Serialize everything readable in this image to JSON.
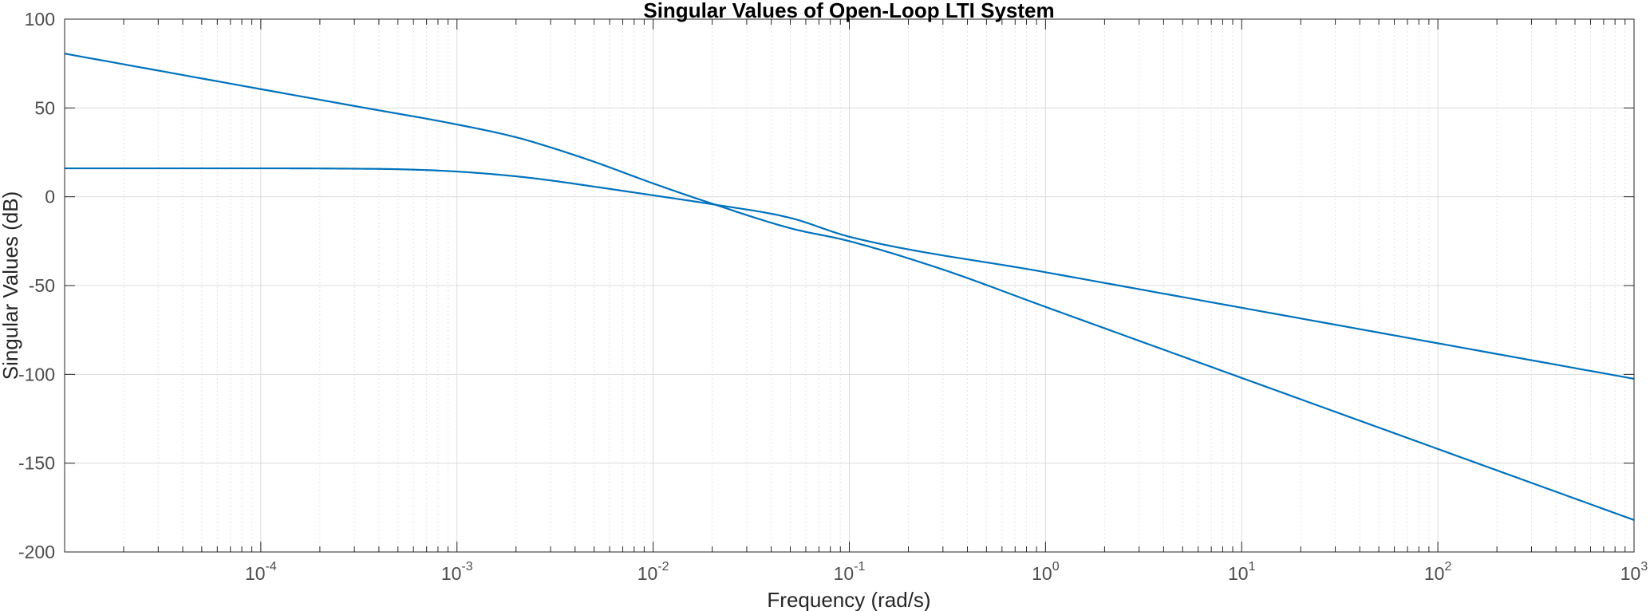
{
  "chart_data": {
    "type": "line",
    "title": "Singular Values of Open-Loop LTI System",
    "xlabel": "Frequency (rad/s)",
    "ylabel": "Singular Values (dB)",
    "xscale": "log",
    "xlim": [
      1e-05,
      1000
    ],
    "ylim": [
      -200,
      100
    ],
    "grid": "major and minor",
    "x_ticks": [
      {
        "base": "10",
        "exp": "-4",
        "value": 0.0001
      },
      {
        "base": "10",
        "exp": "-3",
        "value": 0.001
      },
      {
        "base": "10",
        "exp": "-2",
        "value": 0.01
      },
      {
        "base": "10",
        "exp": "-1",
        "value": 0.1
      },
      {
        "base": "10",
        "exp": "0",
        "value": 1
      },
      {
        "base": "10",
        "exp": "1",
        "value": 10
      },
      {
        "base": "10",
        "exp": "2",
        "value": 100
      },
      {
        "base": "10",
        "exp": "3",
        "value": 1000
      }
    ],
    "y_ticks": [
      {
        "label": "100",
        "value": 100
      },
      {
        "label": "50",
        "value": 50
      },
      {
        "label": "0",
        "value": 0
      },
      {
        "label": "-50",
        "value": -50
      },
      {
        "label": "-100",
        "value": -100
      },
      {
        "label": "-150",
        "value": -150
      },
      {
        "label": "-200",
        "value": -200
      }
    ],
    "line_color": "#0072bd",
    "series": [
      {
        "x": [
          1e-05,
          0.0001,
          0.0003,
          0.001,
          0.002,
          0.003,
          0.005,
          0.01,
          0.02,
          0.05,
          0.1,
          0.3,
          1,
          10,
          100,
          1000
        ],
        "values": [
          80.6,
          60.6,
          51.1,
          40.7,
          33.5,
          27.8,
          19.7,
          7.5,
          -3.9,
          -17.7,
          -25.0,
          -41.0,
          -62.0,
          -102.0,
          -142.0,
          -182.0
        ]
      },
      {
        "x": [
          1e-05,
          0.0001,
          0.0003,
          0.0005,
          0.001,
          0.002,
          0.003,
          0.005,
          0.01,
          0.02,
          0.05,
          0.1,
          1,
          10,
          100,
          1000
        ],
        "values": [
          16.0,
          16.0,
          15.8,
          15.5,
          14.2,
          11.5,
          9.2,
          5.7,
          0.8,
          -4.2,
          -11.9,
          -22.5,
          -42.5,
          -62.5,
          -82.5,
          -102.5
        ]
      }
    ]
  }
}
